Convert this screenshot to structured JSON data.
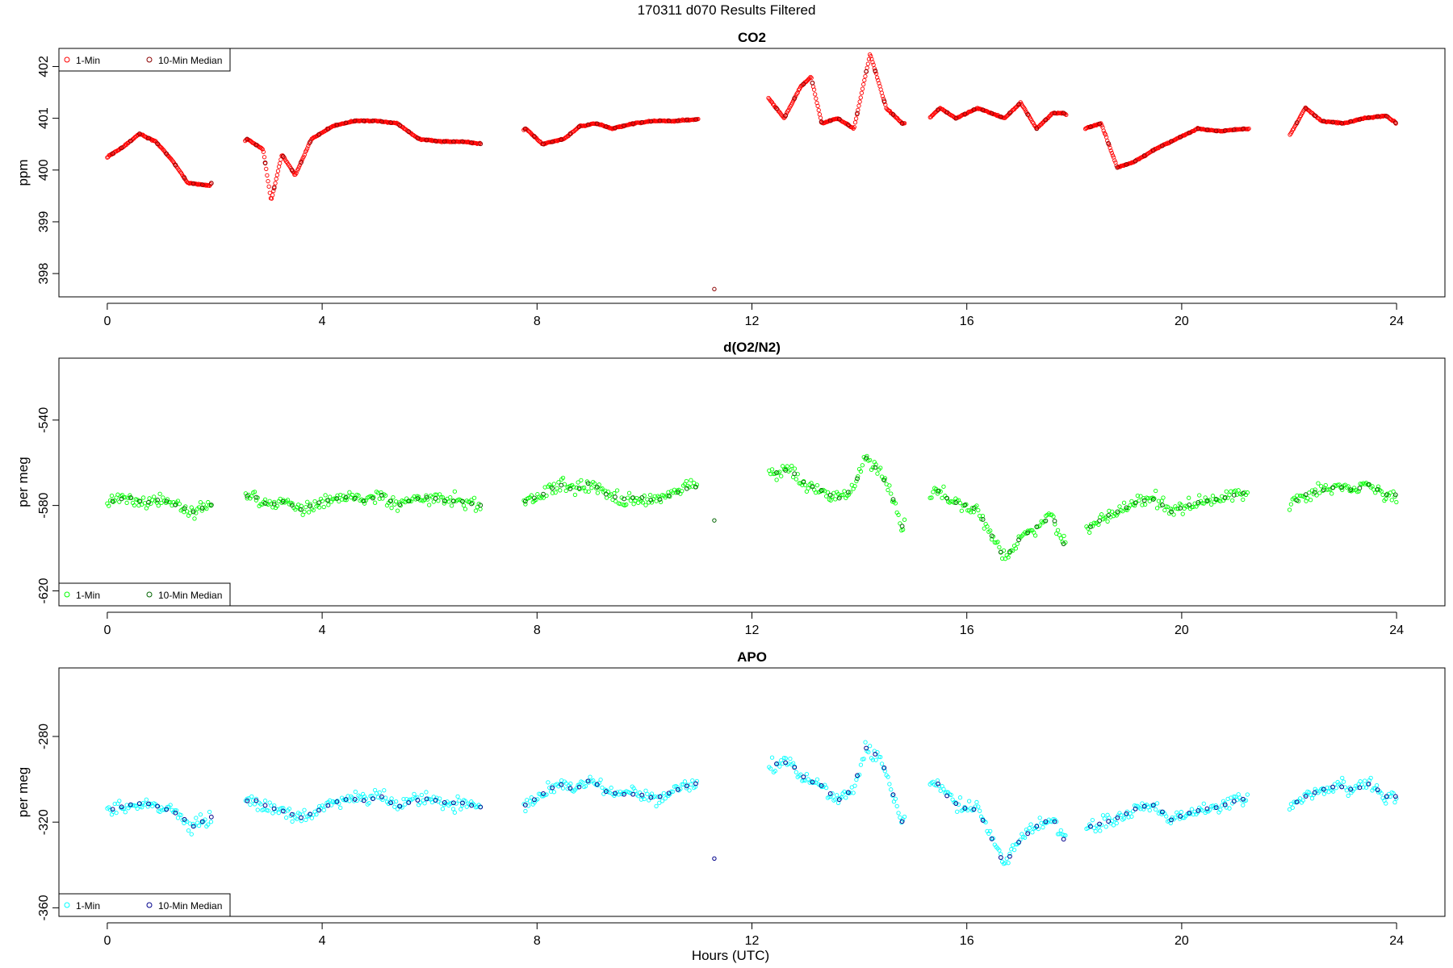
{
  "page_title": "170311   d070   Results Filtered",
  "x_axis_label": "Hours (UTC)",
  "legend_labels": [
    "1-Min",
    "10-Min Median"
  ],
  "colors": {
    "co2_1min": "#ff0000",
    "co2_median": "#8b0000",
    "o2_1min": "#00ff00",
    "o2_median": "#006400",
    "apo_1min": "#00ffff",
    "apo_median": "#00008b",
    "axis": "#000000",
    "frame": "#000000"
  },
  "chart_data": [
    {
      "type": "scatter",
      "title": "CO2",
      "xlabel": "",
      "ylabel": "ppm",
      "xlim": [
        -0.9,
        24.9
      ],
      "ylim": [
        397.55,
        402.35
      ],
      "xticks": [
        0,
        4,
        8,
        12,
        16,
        20,
        24
      ],
      "yticks": [
        398,
        399,
        400,
        401,
        402
      ],
      "legend_position": "top-left",
      "gaps": [
        [
          1.95,
          2.55
        ],
        [
          6.95,
          7.75
        ],
        [
          11.0,
          12.3
        ],
        [
          14.85,
          15.3
        ],
        [
          17.85,
          18.2
        ],
        [
          21.25,
          22.0
        ]
      ],
      "outliers": [
        {
          "x": 11.3,
          "y": 397.7
        }
      ],
      "series": [
        {
          "name": "1-Min",
          "marker": "open-circle",
          "color": "#ff0000",
          "x": [
            0.0,
            0.3,
            0.6,
            0.9,
            1.2,
            1.5,
            1.9,
            2.6,
            2.9,
            3.05,
            3.25,
            3.5,
            3.8,
            4.2,
            4.6,
            5.0,
            5.4,
            5.8,
            6.2,
            6.6,
            7.0,
            7.8,
            8.1,
            8.5,
            8.8,
            9.1,
            9.4,
            9.8,
            10.2,
            10.6,
            11.0,
            12.3,
            12.6,
            12.9,
            13.1,
            13.3,
            13.6,
            13.9,
            14.2,
            14.5,
            14.8,
            15.3,
            15.5,
            15.8,
            16.2,
            16.7,
            17.0,
            17.3,
            17.6,
            17.8,
            18.2,
            18.5,
            18.8,
            19.1,
            19.5,
            19.9,
            20.3,
            20.7,
            21.2,
            22.0,
            22.3,
            22.6,
            23.0,
            23.4,
            23.8,
            24.0
          ],
          "values": [
            400.25,
            400.45,
            400.7,
            400.55,
            400.2,
            399.75,
            399.7,
            400.6,
            400.4,
            399.4,
            400.3,
            399.9,
            400.6,
            400.85,
            400.95,
            400.95,
            400.9,
            400.6,
            400.55,
            400.55,
            400.5,
            400.8,
            400.5,
            400.6,
            400.85,
            400.9,
            400.8,
            400.9,
            400.95,
            400.95,
            400.98,
            401.4,
            401.0,
            401.6,
            401.8,
            400.9,
            401.0,
            400.8,
            402.25,
            401.2,
            400.9,
            401.0,
            401.2,
            401.0,
            401.2,
            401.0,
            401.3,
            400.8,
            401.1,
            401.1,
            400.8,
            400.9,
            400.05,
            400.15,
            400.4,
            400.6,
            400.8,
            400.75,
            400.8,
            400.65,
            401.2,
            400.95,
            400.9,
            401.0,
            401.05,
            400.9
          ]
        },
        {
          "name": "10-Min Median",
          "marker": "open-circle",
          "color": "#8b0000",
          "x": [],
          "values": []
        }
      ]
    },
    {
      "type": "scatter",
      "title": "d(O2/N2)",
      "xlabel": "",
      "ylabel": "per meg",
      "xlim": [
        -0.9,
        24.9
      ],
      "ylim": [
        -627,
        -511
      ],
      "xticks": [
        0,
        4,
        8,
        12,
        16,
        20,
        24
      ],
      "yticks": [
        -620,
        -580,
        -540
      ],
      "legend_position": "bottom-left",
      "gaps": [
        [
          1.95,
          2.55
        ],
        [
          6.95,
          7.75
        ],
        [
          11.0,
          12.3
        ],
        [
          14.85,
          15.3
        ],
        [
          17.85,
          18.2
        ],
        [
          21.25,
          22.0
        ]
      ],
      "outliers": [
        {
          "x": 11.3,
          "y": -587
        }
      ],
      "series": [
        {
          "name": "1-Min",
          "marker": "open-circle",
          "color": "#00ff00",
          "x": [
            0.1,
            0.4,
            0.7,
            1.0,
            1.3,
            1.6,
            1.9,
            2.7,
            3.0,
            3.3,
            3.6,
            3.9,
            4.2,
            4.5,
            4.8,
            5.1,
            5.4,
            5.7,
            6.0,
            6.3,
            6.6,
            6.9,
            7.8,
            8.1,
            8.4,
            8.7,
            9.0,
            9.3,
            9.6,
            9.9,
            10.2,
            10.5,
            10.8,
            12.4,
            12.7,
            13.0,
            13.3,
            13.6,
            13.9,
            14.1,
            14.4,
            14.6,
            14.8,
            15.4,
            15.7,
            16.0,
            16.2,
            16.7,
            17.0,
            17.3,
            17.6,
            17.8,
            18.3,
            18.6,
            18.9,
            19.2,
            19.5,
            19.8,
            20.1,
            20.4,
            20.7,
            21.0,
            21.2,
            22.0,
            22.3,
            22.6,
            22.9,
            23.2,
            23.5,
            23.8
          ],
          "values": [
            -578,
            -576,
            -579,
            -577,
            -580,
            -583,
            -580,
            -575,
            -580,
            -578,
            -582,
            -579,
            -577,
            -576,
            -578,
            -575,
            -580,
            -577,
            -576,
            -578,
            -578,
            -580,
            -578,
            -575,
            -570,
            -573,
            -569,
            -575,
            -577,
            -576,
            -578,
            -575,
            -572,
            -565,
            -563,
            -570,
            -573,
            -577,
            -572,
            -557,
            -565,
            -575,
            -590,
            -572,
            -578,
            -580,
            -582,
            -605,
            -595,
            -590,
            -585,
            -598,
            -590,
            -585,
            -582,
            -578,
            -577,
            -583,
            -580,
            -578,
            -577,
            -575,
            -574,
            -580,
            -575,
            -573,
            -571,
            -573,
            -570,
            -575
          ]
        },
        {
          "name": "10-Min Median",
          "marker": "open-circle",
          "color": "#006400",
          "x": [],
          "values": []
        }
      ]
    },
    {
      "type": "scatter",
      "title": "APO",
      "xlabel": "Hours (UTC)",
      "ylabel": "per meg",
      "xlim": [
        -0.9,
        24.9
      ],
      "ylim": [
        -364,
        -248
      ],
      "xticks": [
        0,
        4,
        8,
        12,
        16,
        20,
        24
      ],
      "yticks": [
        -360,
        -320,
        -280
      ],
      "legend_position": "bottom-left",
      "gaps": [
        [
          1.95,
          2.55
        ],
        [
          6.95,
          7.75
        ],
        [
          11.0,
          12.3
        ],
        [
          14.85,
          15.3
        ],
        [
          17.85,
          18.2
        ],
        [
          21.25,
          22.0
        ]
      ],
      "outliers": [
        {
          "x": 11.3,
          "y": -337
        }
      ],
      "series": [
        {
          "name": "1-Min",
          "marker": "open-circle",
          "color": "#00ffff",
          "x": [
            0.1,
            0.4,
            0.7,
            1.0,
            1.3,
            1.6,
            1.9,
            2.7,
            3.0,
            3.3,
            3.6,
            3.9,
            4.2,
            4.5,
            4.8,
            5.1,
            5.4,
            5.7,
            6.0,
            6.3,
            6.6,
            6.9,
            7.8,
            8.1,
            8.4,
            8.7,
            9.0,
            9.3,
            9.6,
            9.9,
            10.2,
            10.5,
            10.8,
            12.4,
            12.7,
            13.0,
            13.3,
            13.6,
            13.9,
            14.1,
            14.4,
            14.6,
            14.8,
            15.4,
            15.7,
            16.0,
            16.2,
            16.7,
            17.0,
            17.3,
            17.6,
            17.8,
            18.3,
            18.6,
            18.9,
            19.2,
            19.5,
            19.8,
            20.1,
            20.4,
            20.7,
            21.0,
            21.2,
            22.0,
            22.3,
            22.6,
            22.9,
            23.2,
            23.5,
            23.8
          ],
          "values": [
            -314,
            -312,
            -311,
            -313,
            -316,
            -322,
            -318,
            -309,
            -313,
            -315,
            -318,
            -315,
            -311,
            -309,
            -310,
            -308,
            -313,
            -310,
            -309,
            -311,
            -311,
            -313,
            -312,
            -307,
            -302,
            -305,
            -300,
            -306,
            -307,
            -307,
            -309,
            -306,
            -303,
            -293,
            -292,
            -300,
            -303,
            -310,
            -304,
            -285,
            -290,
            -305,
            -320,
            -300,
            -310,
            -314,
            -314,
            -340,
            -328,
            -322,
            -318,
            -328,
            -322,
            -320,
            -317,
            -313,
            -312,
            -319,
            -316,
            -314,
            -313,
            -310,
            -309,
            -313,
            -308,
            -305,
            -303,
            -305,
            -302,
            -308
          ]
        },
        {
          "name": "10-Min Median",
          "marker": "open-circle",
          "color": "#00008b",
          "x": [],
          "values": []
        }
      ]
    }
  ]
}
